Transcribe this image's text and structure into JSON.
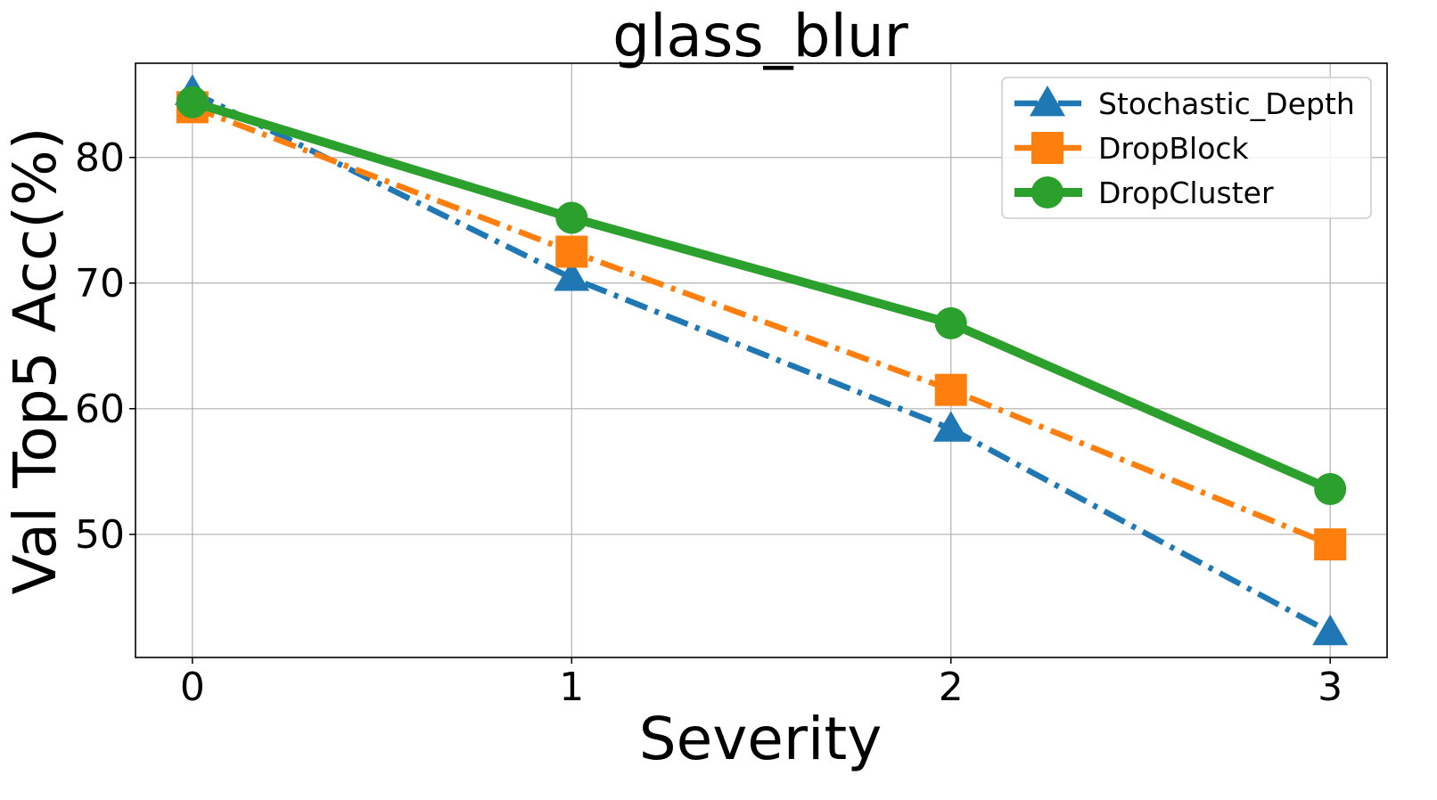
{
  "chart_data": {
    "type": "line",
    "title": "glass_blur",
    "xlabel": "Severity",
    "ylabel": "Val Top5 Acc(%)",
    "x": [
      0,
      1,
      2,
      3
    ],
    "x_ticks": [
      "0",
      "1",
      "2",
      "3"
    ],
    "y_ticks": [
      "50",
      "60",
      "70",
      "80"
    ],
    "xlim": [
      -0.15,
      3.15
    ],
    "ylim": [
      40.2,
      87.5
    ],
    "grid": true,
    "legend_position": "top-right",
    "series": [
      {
        "name": "Stochastic_Depth",
        "values": [
          85.2,
          70.4,
          58.4,
          42.2
        ],
        "color": "#1f77b4",
        "marker": "triangle",
        "line_style": "dash-dot"
      },
      {
        "name": "DropBlock",
        "values": [
          84.0,
          72.5,
          61.5,
          49.2
        ],
        "color": "#ff7f0e",
        "marker": "square",
        "line_style": "dash-dot"
      },
      {
        "name": "DropCluster",
        "values": [
          84.4,
          75.2,
          66.8,
          53.6
        ],
        "color": "#2ca02c",
        "marker": "circle",
        "line_style": "solid"
      }
    ]
  }
}
